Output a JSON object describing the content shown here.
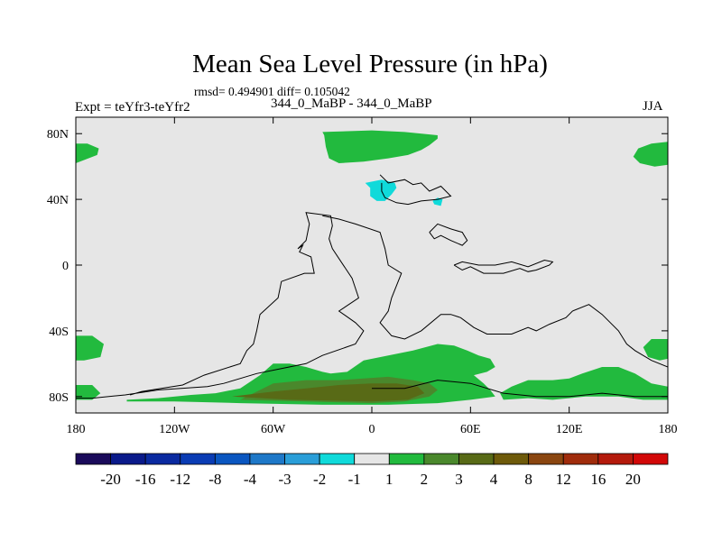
{
  "chart_data": {
    "type": "heatmap",
    "title": "Mean Sea Level Pressure (in hPa)",
    "subtitle": "rmsd= 0.494901 diff= 0.105042",
    "left_string": "Expt = teYfr3-teYfr2",
    "center_string": "344_0_MaBP - 344_0_MaBP",
    "right_string": "JJA",
    "x_axis": {
      "range": [
        -180,
        180
      ],
      "ticks": [
        -180,
        -120,
        -60,
        0,
        60,
        120,
        180
      ],
      "tick_labels": [
        "180",
        "120W",
        "60W",
        "0",
        "60E",
        "120E",
        "180"
      ]
    },
    "y_axis": {
      "range": [
        -90,
        90
      ],
      "ticks": [
        80,
        40,
        0,
        -40,
        -80
      ],
      "tick_labels": [
        "80N",
        "40N",
        "0",
        "40S",
        "80S"
      ]
    },
    "colorbar": {
      "labels": [
        "-20",
        "-16",
        "-12",
        "-8",
        "-4",
        "-3",
        "-2",
        "-1",
        "1",
        "2",
        "3",
        "4",
        "8",
        "12",
        "16",
        "20"
      ],
      "colors": [
        "#1a0a5a",
        "#0a1a8a",
        "#0a2aa0",
        "#0a3cb4",
        "#0a56c0",
        "#1e78c8",
        "#2a9ed8",
        "#10dada",
        "#e6e6e6",
        "#22ba3e",
        "#4a882c",
        "#586a16",
        "#6e5a0a",
        "#8a4610",
        "#a02c0c",
        "#b41a0c",
        "#d20808"
      ]
    },
    "background_color": "#e6e6e6",
    "regions": [
      {
        "name": "northern-pacific-high-west",
        "level": "1 to 2",
        "color": "#22ba3e",
        "lon_lat": [
          [
            -180,
            62
          ],
          [
            -167,
            67
          ],
          [
            -166,
            71
          ],
          [
            -173,
            74
          ],
          [
            -180,
            74
          ]
        ]
      },
      {
        "name": "northern-pacific-high-east",
        "level": "1 to 2",
        "color": "#22ba3e",
        "lon_lat": [
          [
            180,
            75
          ],
          [
            170,
            74
          ],
          [
            162,
            71
          ],
          [
            159,
            66
          ],
          [
            163,
            62
          ],
          [
            172,
            60
          ],
          [
            180,
            61
          ]
        ]
      },
      {
        "name": "north-atlantic-arctic",
        "level": "1 to 2",
        "color": "#22ba3e",
        "lon_lat": [
          [
            -30,
            81
          ],
          [
            -29,
            79
          ],
          [
            -28,
            72
          ],
          [
            -26,
            65
          ],
          [
            -20,
            62
          ],
          [
            -5,
            63
          ],
          [
            10,
            65
          ],
          [
            22,
            67
          ],
          [
            30,
            70
          ],
          [
            35,
            73
          ],
          [
            40,
            77
          ],
          [
            40,
            79
          ],
          [
            20,
            81
          ],
          [
            0,
            82
          ]
        ]
      },
      {
        "name": "eurasia-low",
        "level": "-2 to -1",
        "color": "#10dada",
        "lon_lat": [
          [
            -4,
            50
          ],
          [
            -1,
            47
          ],
          [
            -1,
            42
          ],
          [
            3,
            39
          ],
          [
            8,
            39
          ],
          [
            12,
            43
          ],
          [
            15,
            47
          ],
          [
            14,
            50
          ],
          [
            6,
            52
          ]
        ]
      },
      {
        "name": "eurasia-low-east",
        "level": "-2 to -1",
        "color": "#10dada",
        "lon_lat": [
          [
            37,
            39
          ],
          [
            38,
            37
          ],
          [
            42,
            36
          ],
          [
            43,
            40
          ],
          [
            40,
            41
          ]
        ]
      },
      {
        "name": "south-pacific-west",
        "level": "1 to 2",
        "color": "#22ba3e",
        "lon_lat": [
          [
            -180,
            -43
          ],
          [
            -170,
            -43
          ],
          [
            -163,
            -48
          ],
          [
            -165,
            -56
          ],
          [
            -175,
            -58
          ],
          [
            -180,
            -58
          ]
        ]
      },
      {
        "name": "south-pacific-east",
        "level": "1 to 2",
        "color": "#22ba3e",
        "lon_lat": [
          [
            180,
            -45
          ],
          [
            170,
            -45
          ],
          [
            165,
            -50
          ],
          [
            168,
            -56
          ],
          [
            175,
            -58
          ],
          [
            180,
            -57
          ]
        ]
      },
      {
        "name": "southern-pacific-lower",
        "level": "1 to 2",
        "color": "#22ba3e",
        "lon_lat": [
          [
            -180,
            -73
          ],
          [
            -170,
            -73
          ],
          [
            -165,
            -78
          ],
          [
            -170,
            -82
          ],
          [
            -180,
            -82
          ]
        ]
      },
      {
        "name": "antarctic-west-band",
        "level": "1 to 2",
        "color": "#22ba3e",
        "lon_lat": [
          [
            -149,
            -82
          ],
          [
            -130,
            -81
          ],
          [
            -110,
            -79
          ],
          [
            -95,
            -78
          ],
          [
            -80,
            -75
          ],
          [
            -68,
            -67
          ],
          [
            -60,
            -60
          ],
          [
            -50,
            -60
          ],
          [
            -40,
            -62
          ],
          [
            -30,
            -65
          ],
          [
            -25,
            -66
          ],
          [
            -15,
            -65
          ],
          [
            -5,
            -58
          ],
          [
            10,
            -55
          ],
          [
            25,
            -52
          ],
          [
            40,
            -48
          ],
          [
            50,
            -49
          ],
          [
            58,
            -52
          ],
          [
            65,
            -55
          ],
          [
            72,
            -57
          ],
          [
            75,
            -62
          ],
          [
            70,
            -65
          ],
          [
            62,
            -67
          ],
          [
            68,
            -72
          ],
          [
            72,
            -76
          ],
          [
            75,
            -80
          ],
          [
            60,
            -82
          ],
          [
            40,
            -84
          ],
          [
            10,
            -85
          ],
          [
            -30,
            -85
          ],
          [
            -80,
            -84
          ],
          [
            -120,
            -83
          ],
          [
            -149,
            -83
          ]
        ]
      },
      {
        "name": "antarctic-east-band",
        "level": "1 to 2",
        "color": "#22ba3e",
        "lon_lat": [
          [
            78,
            -78
          ],
          [
            85,
            -74
          ],
          [
            95,
            -70
          ],
          [
            110,
            -70
          ],
          [
            120,
            -69
          ],
          [
            128,
            -66
          ],
          [
            140,
            -62
          ],
          [
            150,
            -62
          ],
          [
            160,
            -66
          ],
          [
            170,
            -72
          ],
          [
            180,
            -74
          ],
          [
            180,
            -82
          ],
          [
            165,
            -82
          ],
          [
            150,
            -80
          ],
          [
            130,
            -80
          ],
          [
            110,
            -82
          ],
          [
            95,
            -81
          ],
          [
            80,
            -82
          ]
        ]
      },
      {
        "name": "antarctic-central-band",
        "level": "2 to 3",
        "color": "#4a882c",
        "lon_lat": [
          [
            -60,
            -72
          ],
          [
            -40,
            -70
          ],
          [
            -20,
            -70
          ],
          [
            -5,
            -69
          ],
          [
            10,
            -68
          ],
          [
            25,
            -70
          ],
          [
            35,
            -72
          ],
          [
            40,
            -76
          ],
          [
            35,
            -80
          ],
          [
            20,
            -83
          ],
          [
            0,
            -84
          ],
          [
            -40,
            -83
          ],
          [
            -80,
            -82
          ]
        ]
      },
      {
        "name": "antarctic-core",
        "level": "3 to 4",
        "color": "#586a16",
        "lon_lat": [
          [
            -85,
            -80
          ],
          [
            -60,
            -77
          ],
          [
            -40,
            -75
          ],
          [
            -20,
            -73
          ],
          [
            0,
            -72
          ],
          [
            15,
            -72
          ],
          [
            28,
            -74
          ],
          [
            32,
            -78
          ],
          [
            22,
            -82
          ],
          [
            0,
            -83
          ],
          [
            -50,
            -82
          ]
        ]
      }
    ],
    "coastlines": [
      {
        "name": "americas-coastline",
        "lon_lat": [
          [
            -147,
            -79
          ],
          [
            -140,
            -77
          ],
          [
            -115,
            -73
          ],
          [
            -102,
            -67
          ],
          [
            -80,
            -60
          ],
          [
            -76,
            -52
          ],
          [
            -72,
            -48
          ],
          [
            -70,
            -40
          ],
          [
            -68,
            -30
          ],
          [
            -57,
            -20
          ],
          [
            -55,
            -10
          ],
          [
            -41,
            -5
          ],
          [
            -35,
            -5
          ],
          [
            -37,
            5
          ],
          [
            -44,
            8
          ],
          [
            -42,
            12
          ],
          [
            -45,
            10
          ],
          [
            -40,
            15
          ],
          [
            -38,
            25
          ],
          [
            -40,
            32
          ],
          [
            -25,
            30
          ],
          [
            -24,
            24
          ],
          [
            -25,
            20
          ],
          [
            -26,
            16
          ],
          [
            -24,
            10
          ],
          [
            -12,
            -8
          ],
          [
            -8,
            -20
          ],
          [
            -20,
            -28
          ],
          [
            -10,
            -35
          ],
          [
            -5,
            -40
          ],
          [
            -10,
            -48
          ],
          [
            -30,
            -55
          ],
          [
            -40,
            -60
          ],
          [
            -55,
            -63
          ],
          [
            -70,
            -66
          ],
          [
            -90,
            -72
          ],
          [
            -100,
            -74
          ],
          [
            -130,
            -76
          ],
          [
            -150,
            -79
          ],
          [
            -170,
            -81
          ],
          [
            -180,
            -81
          ]
        ]
      },
      {
        "name": "europe-coastline",
        "lon_lat": [
          [
            5,
            55
          ],
          [
            10,
            50
          ],
          [
            20,
            52
          ],
          [
            25,
            49
          ],
          [
            30,
            50
          ],
          [
            35,
            45
          ],
          [
            42,
            48
          ],
          [
            45,
            45
          ],
          [
            48,
            42
          ],
          [
            40,
            40
          ],
          [
            30,
            39
          ],
          [
            22,
            37
          ],
          [
            15,
            38
          ],
          [
            8,
            41
          ],
          [
            6,
            45
          ],
          [
            6,
            50
          ]
        ]
      },
      {
        "name": "africa-coastline",
        "lon_lat": [
          [
            -30,
            30
          ],
          [
            -20,
            28
          ],
          [
            -10,
            25
          ],
          [
            5,
            20
          ],
          [
            8,
            10
          ],
          [
            10,
            0
          ],
          [
            18,
            -5
          ],
          [
            12,
            -20
          ],
          [
            10,
            -28
          ],
          [
            5,
            -35
          ],
          [
            12,
            -43
          ],
          [
            20,
            -45
          ],
          [
            30,
            -40
          ],
          [
            42,
            -30
          ],
          [
            48,
            -30
          ],
          [
            54,
            -32
          ],
          [
            62,
            -38
          ],
          [
            70,
            -42
          ],
          [
            85,
            -42
          ],
          [
            95,
            -38
          ],
          [
            100,
            -40
          ],
          [
            108,
            -36
          ],
          [
            118,
            -32
          ],
          [
            122,
            -28
          ],
          [
            132,
            -24
          ],
          [
            140,
            -30
          ],
          [
            150,
            -40
          ],
          [
            155,
            -48
          ],
          [
            160,
            -52
          ],
          [
            170,
            -58
          ],
          [
            180,
            -62
          ]
        ]
      },
      {
        "name": "asia-coastline",
        "lon_lat": [
          [
            50,
            0
          ],
          [
            55,
            -3
          ],
          [
            60,
            -1
          ],
          [
            68,
            -5
          ],
          [
            80,
            -5
          ],
          [
            90,
            -2
          ],
          [
            95,
            -4
          ],
          [
            100,
            -3
          ],
          [
            108,
            0
          ],
          [
            110,
            2
          ],
          [
            105,
            3
          ],
          [
            95,
            -1
          ],
          [
            85,
            2
          ],
          [
            75,
            0
          ],
          [
            65,
            0
          ],
          [
            55,
            2
          ],
          [
            50,
            0
          ]
        ]
      },
      {
        "name": "east-asia-coastline",
        "lon_lat": [
          [
            35,
            20
          ],
          [
            40,
            25
          ],
          [
            48,
            22
          ],
          [
            55,
            20
          ],
          [
            58,
            15
          ],
          [
            55,
            12
          ],
          [
            48,
            15
          ],
          [
            42,
            18
          ],
          [
            38,
            16
          ],
          [
            35,
            20
          ]
        ]
      },
      {
        "name": "southern-coastline",
        "lon_lat": [
          [
            0,
            -75
          ],
          [
            20,
            -75
          ],
          [
            40,
            -70
          ],
          [
            60,
            -72
          ],
          [
            80,
            -78
          ],
          [
            100,
            -80
          ],
          [
            120,
            -80
          ],
          [
            140,
            -78
          ],
          [
            160,
            -80
          ],
          [
            180,
            -80
          ]
        ]
      }
    ]
  }
}
